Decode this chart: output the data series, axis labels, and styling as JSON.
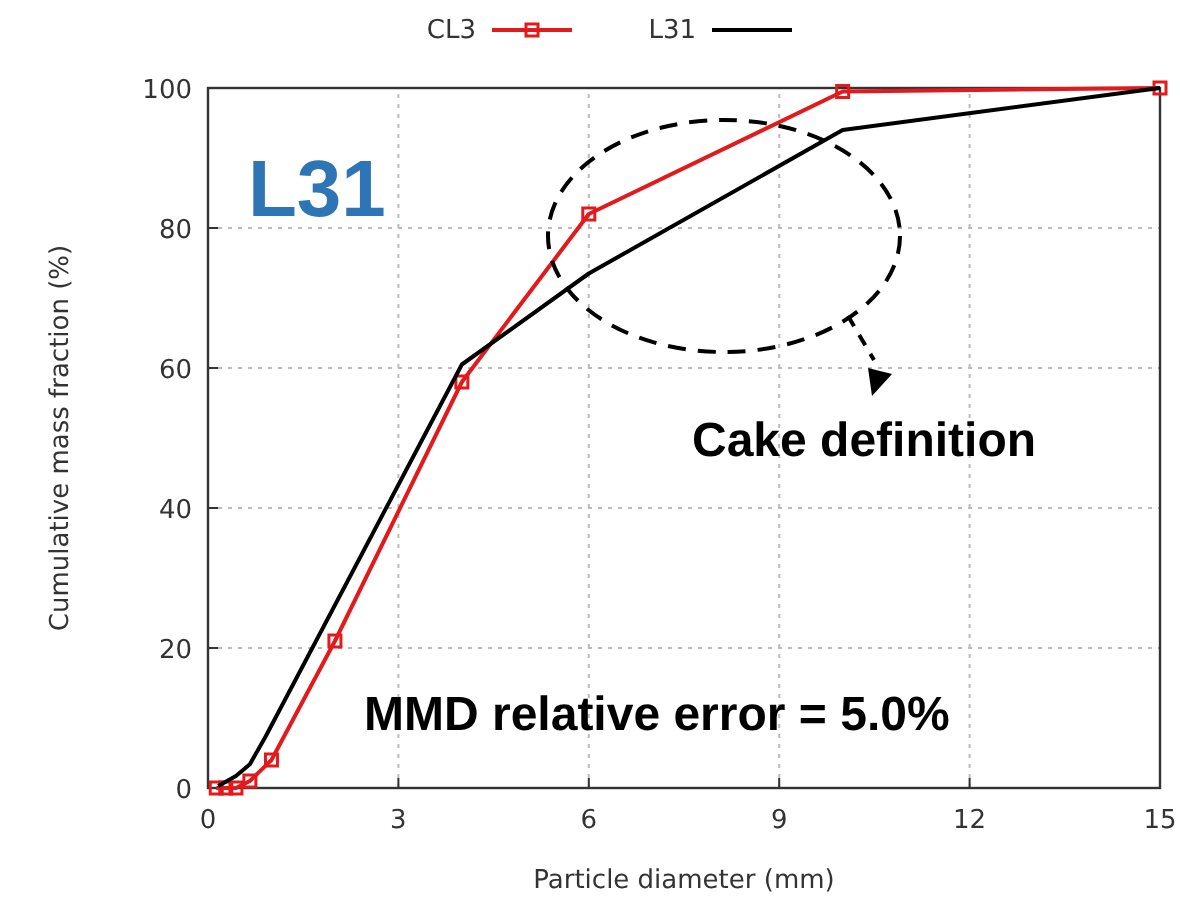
{
  "chart_data": {
    "type": "line",
    "xlabel": "Particle diameter (mm)",
    "ylabel": "Cumulative mass fraction (%)",
    "xlim": [
      0,
      15
    ],
    "xticks": [
      0,
      3,
      6,
      9,
      12,
      15
    ],
    "ylim": [
      0,
      100
    ],
    "yticks": [
      0,
      20,
      40,
      60,
      80,
      100
    ],
    "grid": true,
    "legend": "top",
    "line_style": "solid",
    "series": [
      {
        "name": "CL3",
        "color": "#e31a1c",
        "marker": "square",
        "x": [
          0.13,
          0.28,
          0.44,
          0.66,
          1,
          2,
          4,
          6,
          10,
          15
        ],
        "values": [
          0,
          0,
          0,
          1,
          4,
          21,
          58,
          82,
          99.5,
          100
        ]
      },
      {
        "name": "L31",
        "color": "#000000",
        "marker": "none",
        "x": [
          0.16,
          0.44,
          0.66,
          0.91,
          4,
          6,
          10,
          15
        ],
        "values": [
          0.3,
          1.7,
          3.4,
          7.4,
          60.5,
          73.5,
          94,
          100
        ]
      }
    ],
    "annotations": [
      "L31",
      "Cake definition",
      "MMD relative error = 5.0%"
    ]
  }
}
